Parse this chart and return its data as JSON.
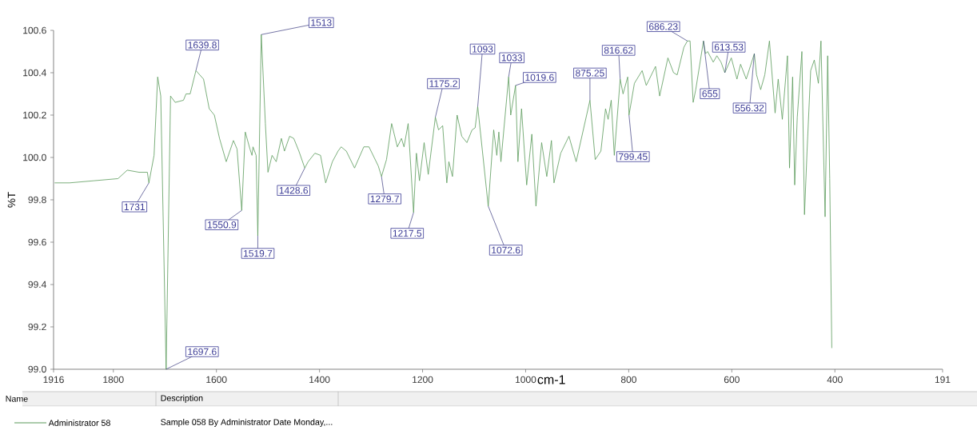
{
  "chart_data": {
    "type": "line",
    "xlabel": "cm-1",
    "ylabel": "%T",
    "xlim": [
      1916,
      191
    ],
    "ylim": [
      99.0,
      100.6
    ],
    "xticks": [
      1916,
      1800,
      1600,
      1400,
      1200,
      1000,
      800,
      600,
      400,
      191
    ],
    "yticks": [
      {
        "value": 99.0,
        "label": "99.0"
      },
      99.2,
      99.4,
      99.6,
      99.8,
      {
        "value": 100.0,
        "label": "100.0"
      },
      100.2,
      100.4,
      100.6
    ],
    "grid": false,
    "legend": "bottom",
    "marker": "none",
    "line_style": "solid",
    "series": [
      {
        "name": "Administrator 58",
        "color": "#5a9a5a",
        "x": [
          1914,
          1885,
          1838,
          1791,
          1773,
          1750,
          1734,
          1731,
          1721,
          1714,
          1708,
          1697.6,
          1689,
          1680,
          1664,
          1659,
          1651,
          1639.8,
          1625,
          1614,
          1604,
          1594,
          1581,
          1567,
          1560,
          1550.9,
          1544,
          1535,
          1531,
          1529,
          1523,
          1519.7,
          1513,
          1505,
          1500,
          1492,
          1484,
          1474,
          1468,
          1458,
          1450,
          1440,
          1428.6,
          1422,
          1409,
          1398,
          1388,
          1375,
          1364,
          1358,
          1348,
          1332,
          1314,
          1304,
          1286,
          1279.7,
          1270,
          1260,
          1249,
          1241,
          1236,
          1228,
          1217.5,
          1212,
          1206,
          1197,
          1189,
          1175.2,
          1169,
          1161,
          1153,
          1149,
          1142,
          1133,
          1124,
          1114,
          1104,
          1098,
          1093,
          1072.6,
          1062,
          1056,
          1052,
          1048,
          1033,
          1029,
          1019.6,
          1015,
          1008,
          998,
          988,
          980,
          969,
          959,
          950,
          945,
          932,
          916,
          902,
          875.25,
          865,
          854,
          845,
          840,
          834,
          828,
          816.62,
          811,
          802,
          799.45,
          789,
          774,
          766,
          748,
          740,
          724,
          713,
          706,
          693,
          686.23,
          681,
          675,
          670,
          655,
          651,
          647,
          636,
          629,
          621,
          613.53,
          601,
          590,
          583,
          572,
          556.32,
          552,
          544,
          536,
          527,
          516,
          510,
          502,
          492,
          488,
          482,
          478,
          473,
          464,
          459,
          454,
          447,
          440,
          432,
          427,
          419,
          414,
          410,
          406
        ],
        "values": [
          99.88,
          99.88,
          99.89,
          99.9,
          99.94,
          99.93,
          99.93,
          99.88,
          100.01,
          100.38,
          100.29,
          99.0,
          100.29,
          100.26,
          100.27,
          100.3,
          100.3,
          100.41,
          100.37,
          100.23,
          100.2,
          100.09,
          99.98,
          100.08,
          100.04,
          99.75,
          100.12,
          100.04,
          100.01,
          100.05,
          100.01,
          99.63,
          100.58,
          100.16,
          99.93,
          100.01,
          99.98,
          100.09,
          100.03,
          100.1,
          100.09,
          100.03,
          99.95,
          99.98,
          100.02,
          100.01,
          99.88,
          99.98,
          100.03,
          100.05,
          100.03,
          99.95,
          100.05,
          100.05,
          99.96,
          99.91,
          99.99,
          100.16,
          100.05,
          100.09,
          100.05,
          100.16,
          99.74,
          100.02,
          99.89,
          100.07,
          99.92,
          100.19,
          100.13,
          100.15,
          99.88,
          99.98,
          99.91,
          100.2,
          100.1,
          100.07,
          100.13,
          100.14,
          100.24,
          99.77,
          100.13,
          100.01,
          100.12,
          99.98,
          100.38,
          100.2,
          100.34,
          99.98,
          100.23,
          99.87,
          100.11,
          99.77,
          100.07,
          99.91,
          100.08,
          99.88,
          100.02,
          100.1,
          99.98,
          100.27,
          99.99,
          100.03,
          100.23,
          100.18,
          100.27,
          100.01,
          100.37,
          100.3,
          100.38,
          100.2,
          100.35,
          100.41,
          100.34,
          100.43,
          100.29,
          100.47,
          100.4,
          100.39,
          100.52,
          100.55,
          100.55,
          100.26,
          100.32,
          100.55,
          100.49,
          100.5,
          100.45,
          100.48,
          100.45,
          100.4,
          100.47,
          100.37,
          100.44,
          100.37,
          100.49,
          100.39,
          100.32,
          100.39,
          100.55,
          100.21,
          100.37,
          100.18,
          100.48,
          99.95,
          100.38,
          99.87,
          100.19,
          100.5,
          99.73,
          100.03,
          100.41,
          100.46,
          100.35,
          100.55,
          99.72,
          100.48,
          99.9,
          99.1
        ]
      }
    ],
    "annotations": [
      {
        "text": "1731",
        "x": 1731,
        "y": 99.88
      },
      {
        "text": "1697.6",
        "x": 1697.6,
        "y": 99.0
      },
      {
        "text": "1639.8",
        "x": 1639.8,
        "y": 100.41
      },
      {
        "text": "1550.9",
        "x": 1550.9,
        "y": 99.75
      },
      {
        "text": "1519.7",
        "x": 1519.7,
        "y": 99.63
      },
      {
        "text": "1513",
        "x": 1513,
        "y": 100.58
      },
      {
        "text": "1428.6",
        "x": 1428.6,
        "y": 99.95
      },
      {
        "text": "1279.7",
        "x": 1279.7,
        "y": 99.91
      },
      {
        "text": "1217.5",
        "x": 1217.5,
        "y": 99.74
      },
      {
        "text": "1175.2",
        "x": 1175.2,
        "y": 100.19
      },
      {
        "text": "1093",
        "x": 1093,
        "y": 100.24
      },
      {
        "text": "1072.6",
        "x": 1072.6,
        "y": 99.77
      },
      {
        "text": "1033",
        "x": 1033,
        "y": 100.38
      },
      {
        "text": "1019.6",
        "x": 1019.6,
        "y": 100.34
      },
      {
        "text": "875.25",
        "x": 875.25,
        "y": 100.27
      },
      {
        "text": "816.62",
        "x": 816.62,
        "y": 100.37
      },
      {
        "text": "799.45",
        "x": 799.45,
        "y": 100.2
      },
      {
        "text": "686.23",
        "x": 686.23,
        "y": 100.55
      },
      {
        "text": "655",
        "x": 655,
        "y": 100.55
      },
      {
        "text": "613.53",
        "x": 613.53,
        "y": 100.4
      },
      {
        "text": "556.32",
        "x": 556.32,
        "y": 100.49
      },
      "Name",
      "Description",
      "Sample 058 By Administrator Date Monday,..."
    ]
  }
}
